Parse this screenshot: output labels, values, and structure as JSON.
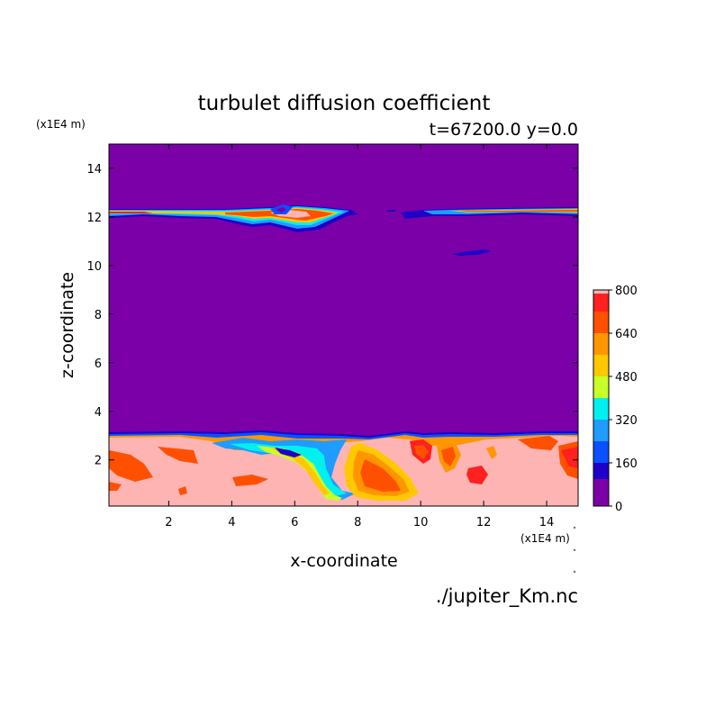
{
  "chart_data": {
    "type": "heatmap",
    "title": "turbulet diffusion coefficient",
    "subtitle": "t=67200.0 y=0.0",
    "xlabel": "x-coordinate",
    "ylabel": "z-coordinate",
    "x_unit": "(x1E4 m)",
    "y_unit": "(x1E4 m)",
    "xlim": [
      0.1,
      15
    ],
    "ylim": [
      0.1,
      15
    ],
    "x_ticks": [
      2,
      4,
      6,
      8,
      10,
      12,
      14
    ],
    "y_ticks": [
      2,
      4,
      6,
      8,
      10,
      12,
      14
    ],
    "colorbar": {
      "levels": [
        0,
        100,
        160,
        240,
        320,
        400,
        480,
        560,
        640,
        720,
        800
      ],
      "tick_labels": [
        "0",
        "160",
        "320",
        "480",
        "640",
        "800"
      ],
      "tick_values": [
        0,
        160,
        320,
        480,
        640,
        800
      ],
      "colors": [
        "#7b00a8",
        "#1e00c8",
        "#0a50ff",
        "#1e9cff",
        "#00f0f0",
        "#c8ff28",
        "#ffc800",
        "#ff9600",
        "#ff5000",
        "#ff2020",
        "#ffb4b4"
      ]
    },
    "background_value": 0,
    "notes": "Low layer (z≈0.1–3) mostly ~800 with eddies; thin active layer near z≈12.2; isolated blob near x≈11.5, z≈10.4"
  },
  "source_file": "./jupiter_Km.nc"
}
